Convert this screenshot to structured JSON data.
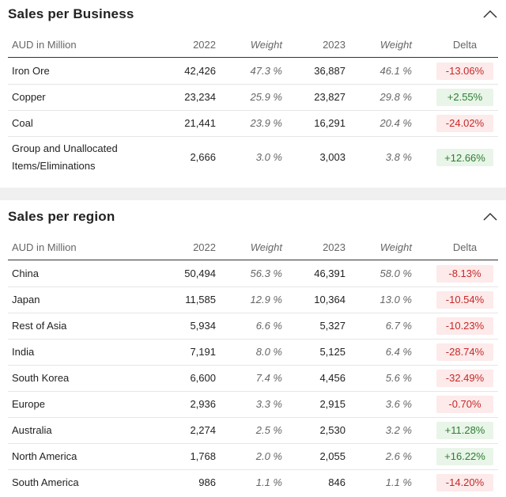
{
  "sections": [
    {
      "title": "Sales per Business",
      "headers": [
        "AUD in Million",
        "2022",
        "Weight",
        "2023",
        "Weight",
        "Delta"
      ],
      "rows": [
        [
          "Iron Ore",
          "42,426",
          "47.3 %",
          "36,887",
          "46.1 %",
          "-13.06%"
        ],
        [
          "Copper",
          "23,234",
          "25.9 %",
          "23,827",
          "29.8 %",
          "+2.55%"
        ],
        [
          "Coal",
          "21,441",
          "23.9 %",
          "16,291",
          "20.4 %",
          "-24.02%"
        ],
        [
          "Group and Unallocated Items/Eliminations",
          "2,666",
          "3.0 %",
          "3,003",
          "3.8 %",
          "+12.66%"
        ]
      ]
    },
    {
      "title": "Sales per region",
      "headers": [
        "AUD in Million",
        "2022",
        "Weight",
        "2023",
        "Weight",
        "Delta"
      ],
      "rows": [
        [
          "China",
          "50,494",
          "56.3 %",
          "46,391",
          "58.0 %",
          "-8.13%"
        ],
        [
          "Japan",
          "11,585",
          "12.9 %",
          "10,364",
          "13.0 %",
          "-10.54%"
        ],
        [
          "Rest of Asia",
          "5,934",
          "6.6 %",
          "5,327",
          "6.7 %",
          "-10.23%"
        ],
        [
          "India",
          "7,191",
          "8.0 %",
          "5,125",
          "6.4 %",
          "-28.74%"
        ],
        [
          "South Korea",
          "6,600",
          "7.4 %",
          "4,456",
          "5.6 %",
          "-32.49%"
        ],
        [
          "Europe",
          "2,936",
          "3.3 %",
          "2,915",
          "3.6 %",
          "-0.70%"
        ],
        [
          "Australia",
          "2,274",
          "2.5 %",
          "2,530",
          "3.2 %",
          "+11.28%"
        ],
        [
          "North America",
          "1,768",
          "2.0 %",
          "2,055",
          "2.6 %",
          "+16.22%"
        ],
        [
          "South America",
          "986",
          "1.1 %",
          "846",
          "1.1 %",
          "-14.20%"
        ]
      ]
    }
  ]
}
